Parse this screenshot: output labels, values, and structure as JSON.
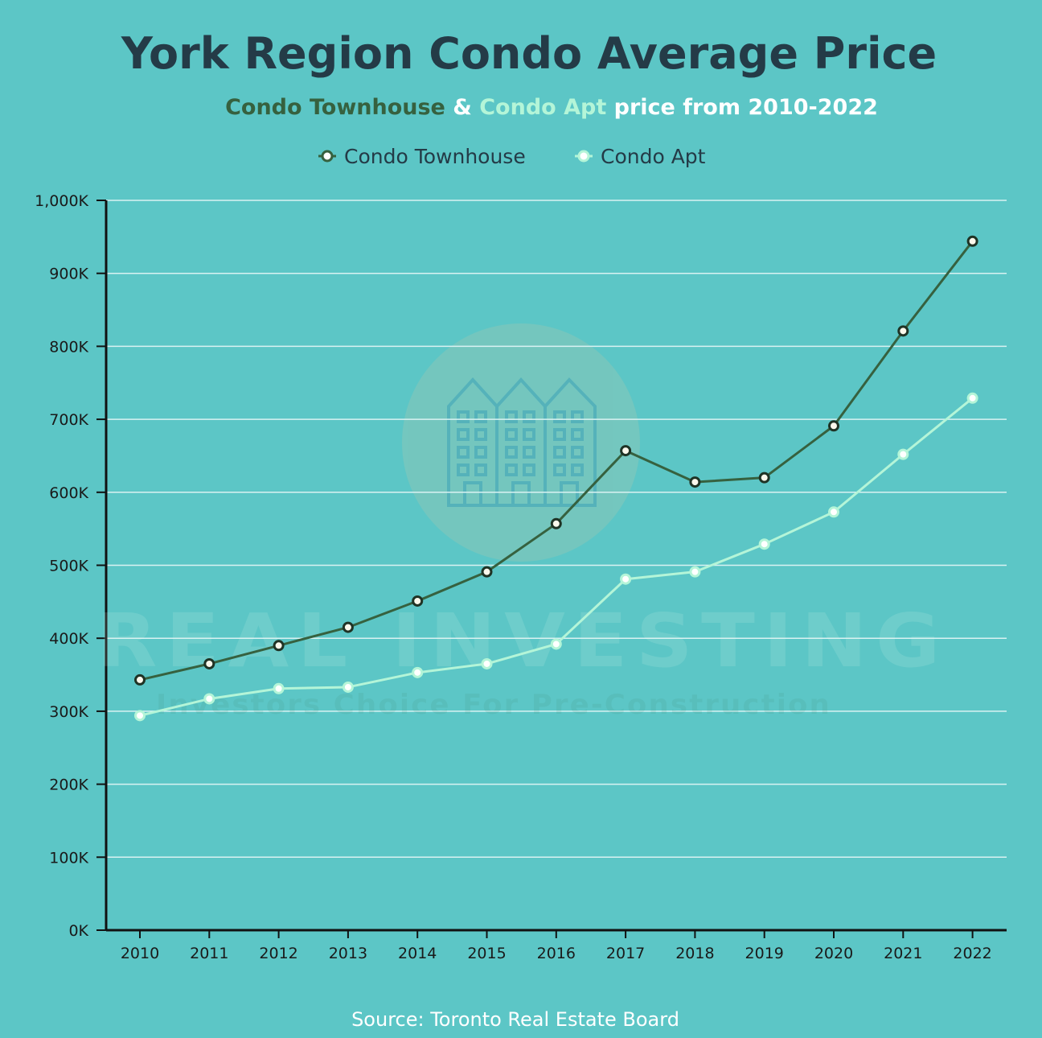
{
  "colors": {
    "background": "#5cc6c6",
    "title": "#243b47",
    "townhouse": "#36613f",
    "apt": "#b4f5d8",
    "subtitle_rest": "#ffffff",
    "grid": "#d9f2f2",
    "axis": "#111111"
  },
  "chart_data": {
    "type": "line",
    "title": "York Region Condo Average Price",
    "subtitle": {
      "part1": "Condo Townhouse",
      "part2": " & ",
      "part3": "Condo Apt",
      "part4": " price from 2010-2022"
    },
    "x": [
      "2010",
      "2011",
      "2012",
      "2013",
      "2014",
      "2015",
      "2016",
      "2017",
      "2018",
      "2019",
      "2020",
      "2021",
      "2022"
    ],
    "series": [
      {
        "name": "Condo Townhouse",
        "color": "#36613f",
        "values": [
          343,
          365,
          390,
          415,
          451,
          491,
          557,
          657,
          614,
          620,
          691,
          821,
          944
        ]
      },
      {
        "name": "Condo Apt",
        "color": "#b4f5d8",
        "values": [
          294,
          317,
          331,
          333,
          353,
          365,
          392,
          481,
          491,
          529,
          573,
          652,
          729
        ]
      }
    ],
    "ylim": [
      0,
      1000
    ],
    "yticks": [
      "0K",
      "100K",
      "200K",
      "300K",
      "400K",
      "500K",
      "600K",
      "700K",
      "800K",
      "900K",
      "1,000K"
    ],
    "grid": true,
    "legend": "top-center",
    "source": "Source: Toronto Real Estate Board"
  },
  "watermark": {
    "icon": "building-icon",
    "line1": "REAL INVESTING",
    "line2": "Investors Choice For Pre-Construction"
  }
}
